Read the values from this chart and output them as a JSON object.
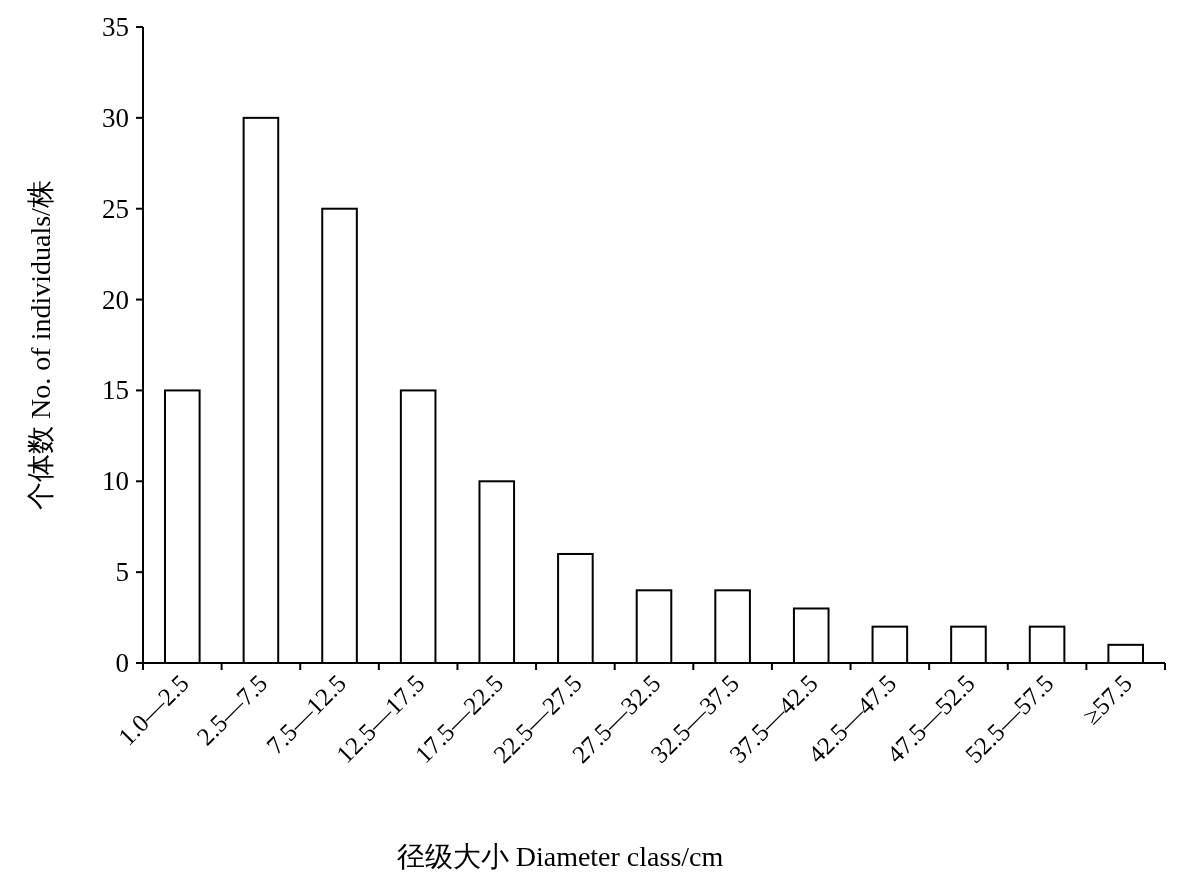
{
  "chart_data": {
    "type": "bar",
    "xlabel": "径级大小 Diameter class/cm",
    "ylabel": "个体数 No. of individuals/株",
    "categories": [
      "1.0—2.5",
      "2.5—7.5",
      "7.5—12.5",
      "12.5—17.5",
      "17.5—22.5",
      "22.5—27.5",
      "27.5—32.5",
      "32.5—37.5",
      "37.5—42.5",
      "42.5—47.5",
      "47.5—52.5",
      "52.5—57.5",
      "≥57.5"
    ],
    "values": [
      15,
      30,
      25,
      15,
      10,
      6,
      4,
      4,
      3,
      2,
      2,
      2,
      1
    ],
    "color": "#ffffff",
    "ylim": [
      0,
      35
    ],
    "yticks": [
      0,
      5,
      10,
      15,
      20,
      25,
      30,
      35
    ],
    "grid": false
  }
}
